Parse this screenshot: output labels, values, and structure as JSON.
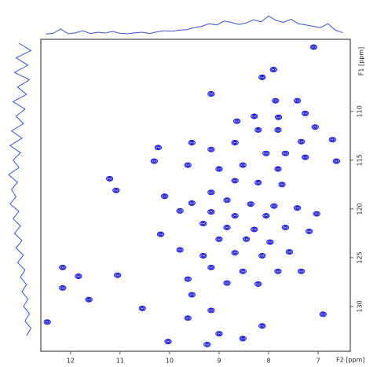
{
  "chart_data": {
    "type": "contour",
    "x_label": "F2 [ppm]",
    "y_label": "F1 [ppm]",
    "xlim": [
      12.6,
      6.35
    ],
    "ylim": [
      102.6,
      134.6
    ],
    "xticks": [
      12,
      11,
      10,
      9,
      8,
      7
    ],
    "yticks": [
      110,
      115,
      120,
      125,
      130
    ],
    "color": "#0a0ae6",
    "projection_color": "#3a4fe0",
    "peaks": {
      "x": [
        7.09,
        8.13,
        7.9,
        9.16,
        7.86,
        7.42,
        8.29,
        7.8,
        7.26,
        8.64,
        7.06,
        8.21,
        7.81,
        7.34,
        8.68,
        9.55,
        6.71,
        10.23,
        9.16,
        8.05,
        7.66,
        7.26,
        10.31,
        6.63,
        8.52,
        9.0,
        7.81,
        9.63,
        11.21,
        8.68,
        8.21,
        7.73,
        11.08,
        10.1,
        9.16,
        8.84,
        9.55,
        8.36,
        7.89,
        7.42,
        9.79,
        9.16,
        8.68,
        8.05,
        7.03,
        9.32,
        8.84,
        8.29,
        7.66,
        7.18,
        10.18,
        9.0,
        8.45,
        7.97,
        9.79,
        9.32,
        8.68,
        8.13,
        7.58,
        9.16,
        8.52,
        7.81,
        7.34,
        12.16,
        11.05,
        11.84,
        9.63,
        8.84,
        12.16,
        8.21,
        9.55,
        11.63,
        10.55,
        9.16,
        6.9,
        9.63,
        8.13,
        12.47,
        9.0,
        10.03,
        9.24,
        8.52
      ],
      "y": [
        103.4,
        106.5,
        105.7,
        108.2,
        108.9,
        108.9,
        110.5,
        110.6,
        110.2,
        111.0,
        111.6,
        111.9,
        111.9,
        113.1,
        113.2,
        113.2,
        112.9,
        113.7,
        113.9,
        114.3,
        114.3,
        114.7,
        115.1,
        115.1,
        115.5,
        115.9,
        115.9,
        115.5,
        116.9,
        117.1,
        117.3,
        117.5,
        118.1,
        118.7,
        118.3,
        119.1,
        119.4,
        119.5,
        119.7,
        119.9,
        120.2,
        120.3,
        120.7,
        120.7,
        120.5,
        121.5,
        121.9,
        122.1,
        121.9,
        122.3,
        122.6,
        123.1,
        123.1,
        123.4,
        124.2,
        124.8,
        124.5,
        124.8,
        124.4,
        126.0,
        126.4,
        126.4,
        126.4,
        126.0,
        126.8,
        126.9,
        127.2,
        127.6,
        128.1,
        127.7,
        128.8,
        129.3,
        130.2,
        130.4,
        130.8,
        131.2,
        132.0,
        131.6,
        132.8,
        133.6,
        133.9,
        133.3
      ]
    },
    "top_projection": {
      "x": [
        12.5,
        12.35,
        12.2,
        12.05,
        11.9,
        11.75,
        11.6,
        11.45,
        11.3,
        11.15,
        11.0,
        10.85,
        10.7,
        10.55,
        10.4,
        10.25,
        10.1,
        9.95,
        9.8,
        9.65,
        9.5,
        9.35,
        9.2,
        9.05,
        8.9,
        8.75,
        8.6,
        8.45,
        8.3,
        8.15,
        8.0,
        7.85,
        7.7,
        7.55,
        7.4,
        7.25,
        7.1,
        6.95,
        6.8,
        6.65,
        6.5
      ],
      "values": [
        5,
        8,
        25,
        6,
        10,
        18,
        7,
        12,
        9,
        15,
        8,
        6,
        10,
        12,
        7,
        14,
        18,
        16,
        20,
        22,
        30,
        35,
        45,
        40,
        55,
        50,
        42,
        48,
        60,
        52,
        75,
        58,
        50,
        62,
        45,
        40,
        35,
        30,
        45,
        20,
        10
      ]
    },
    "left_projection": {
      "y": [
        103,
        103.75,
        104.5,
        105.25,
        106,
        106.75,
        107.5,
        108.25,
        109,
        109.75,
        110.5,
        111.25,
        112,
        112.75,
        113.5,
        114.25,
        115,
        115.75,
        116.5,
        117.25,
        118,
        118.75,
        119.5,
        120.25,
        121,
        121.75,
        122.5,
        123.25,
        124,
        124.75,
        125.5,
        126.25,
        127,
        127.75,
        128.5,
        129.25,
        130,
        130.75,
        131.5,
        132.25,
        133
      ],
      "values": [
        60,
        20,
        70,
        30,
        75,
        25,
        65,
        35,
        80,
        40,
        70,
        45,
        85,
        50,
        90,
        55,
        80,
        60,
        95,
        65,
        85,
        70,
        90,
        60,
        80,
        55,
        75,
        50,
        70,
        45,
        65,
        40,
        55,
        35,
        50,
        30,
        45,
        25,
        40,
        20,
        35
      ]
    }
  }
}
